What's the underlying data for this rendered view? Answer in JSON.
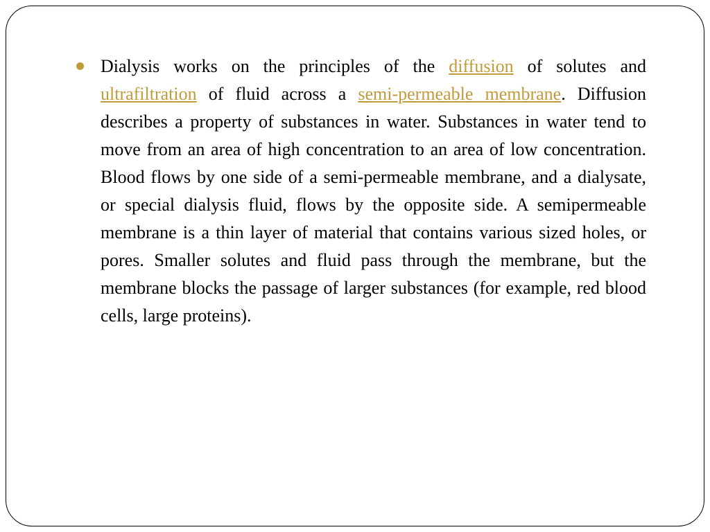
{
  "colors": {
    "bullet_color": "#c19b3b",
    "link_color": "#c19b3b",
    "text_color": "#000000",
    "border_color": "#000000",
    "background_color": "#ffffff"
  },
  "typography": {
    "body_fontsize": 26,
    "line_height": 1.54,
    "font_family": "Garamond, Georgia, serif"
  },
  "paragraph": {
    "segments": [
      {
        "text": " Dialysis works on the principles of the ",
        "link": false
      },
      {
        "text": "diffusion",
        "link": true
      },
      {
        "text": " of solutes and ",
        "link": false
      },
      {
        "text": "ultrafiltration",
        "link": true
      },
      {
        "text": " of fluid across a ",
        "link": false
      },
      {
        "text": "semi-permeable membrane",
        "link": true
      },
      {
        "text": ". Diffusion describes a property of substances in water. Substances in water tend to move from an area of high concentration to an area of low concentration. Blood flows by one side of a semi-permeable membrane, and a dialysate, or special dialysis fluid, flows by the opposite side. A semipermeable membrane is a thin layer of material that contains various sized holes, or pores. Smaller solutes and fluid pass through the membrane, but the membrane blocks the passage of larger substances (for example, red blood cells, large proteins).",
        "link": false
      }
    ]
  }
}
